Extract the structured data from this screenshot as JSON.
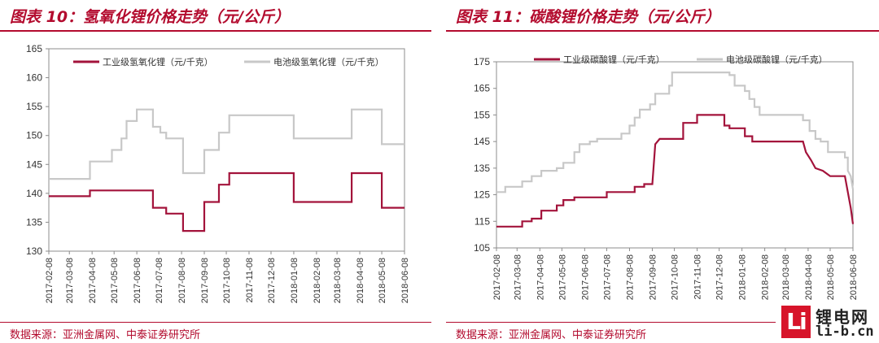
{
  "colors": {
    "accent": "#b30b2e",
    "industrial": "#a3133b",
    "battery": "#c8c8c8"
  },
  "logo": {
    "mark": "Li",
    "name_cn": "锂电网",
    "name_en": "li-b.cn"
  },
  "chart_data": [
    {
      "type": "line",
      "title": "图表 10：氢氧化锂价格走势（元/公斤）",
      "source": "数据来源：亚洲金属网、中泰证券研究所",
      "ylim": [
        130,
        165
      ],
      "yticks": [
        130,
        135,
        140,
        145,
        150,
        155,
        160,
        165
      ],
      "xlim": [
        "2017-02-08",
        "2018-06-08"
      ],
      "xticks": [
        "2017-02-08",
        "2017-03-08",
        "2017-04-08",
        "2017-05-08",
        "2017-06-08",
        "2017-07-08",
        "2017-08-08",
        "2017-09-08",
        "2017-10-08",
        "2017-11-08",
        "2017-12-08",
        "2018-01-08",
        "2018-02-08",
        "2018-03-08",
        "2018-04-08",
        "2018-05-08",
        "2018-06-08"
      ],
      "grid": false,
      "legend_position": "top",
      "series": [
        {
          "name": "工业级氢氧化锂（元/千克）",
          "color": "#a3133b",
          "points": [
            [
              "2017-02-08",
              139.5
            ],
            [
              "2017-04-05",
              139.5
            ],
            [
              "2017-04-05",
              140.5
            ],
            [
              "2017-06-30",
              140.5
            ],
            [
              "2017-06-30",
              137.5
            ],
            [
              "2017-07-18",
              137.5
            ],
            [
              "2017-07-18",
              136.5
            ],
            [
              "2017-08-10",
              136.5
            ],
            [
              "2017-08-10",
              133.5
            ],
            [
              "2017-09-08",
              133.5
            ],
            [
              "2017-09-08",
              138.5
            ],
            [
              "2017-09-28",
              138.5
            ],
            [
              "2017-09-28",
              141.5
            ],
            [
              "2017-10-12",
              141.5
            ],
            [
              "2017-10-12",
              143.5
            ],
            [
              "2018-01-08",
              143.5
            ],
            [
              "2018-01-08",
              138.5
            ],
            [
              "2018-03-28",
              138.5
            ],
            [
              "2018-03-28",
              143.5
            ],
            [
              "2018-05-08",
              143.5
            ],
            [
              "2018-05-08",
              137.5
            ],
            [
              "2018-06-08",
              137.5
            ]
          ]
        },
        {
          "name": "电池级氢氧化锂（元/千克）",
          "color": "#c8c8c8",
          "points": [
            [
              "2017-02-08",
              142.5
            ],
            [
              "2017-04-05",
              142.5
            ],
            [
              "2017-04-05",
              145.5
            ],
            [
              "2017-05-05",
              145.5
            ],
            [
              "2017-05-05",
              147.5
            ],
            [
              "2017-05-18",
              147.5
            ],
            [
              "2017-05-18",
              149.5
            ],
            [
              "2017-05-25",
              149.5
            ],
            [
              "2017-05-25",
              152.5
            ],
            [
              "2017-06-08",
              152.5
            ],
            [
              "2017-06-08",
              154.5
            ],
            [
              "2017-06-30",
              154.5
            ],
            [
              "2017-06-30",
              151.5
            ],
            [
              "2017-07-10",
              151.5
            ],
            [
              "2017-07-10",
              150.5
            ],
            [
              "2017-07-18",
              150.5
            ],
            [
              "2017-07-18",
              149.5
            ],
            [
              "2017-08-10",
              149.5
            ],
            [
              "2017-08-10",
              143.5
            ],
            [
              "2017-09-08",
              143.5
            ],
            [
              "2017-09-08",
              147.5
            ],
            [
              "2017-09-28",
              147.5
            ],
            [
              "2017-09-28",
              150.5
            ],
            [
              "2017-10-12",
              150.5
            ],
            [
              "2017-10-12",
              153.5
            ],
            [
              "2018-01-08",
              153.5
            ],
            [
              "2018-01-08",
              149.5
            ],
            [
              "2018-03-28",
              149.5
            ],
            [
              "2018-03-28",
              154.5
            ],
            [
              "2018-05-08",
              154.5
            ],
            [
              "2018-05-08",
              148.5
            ],
            [
              "2018-06-08",
              148.5
            ]
          ]
        }
      ]
    },
    {
      "type": "line",
      "title": "图表 11：碳酸锂价格走势（元/公斤）",
      "source": "数据来源：亚洲金属网、中泰证券研究所",
      "ylim": [
        105,
        175
      ],
      "yticks": [
        105,
        115,
        125,
        135,
        145,
        155,
        165,
        175
      ],
      "xlim": [
        "2017-02-08",
        "2018-06-08"
      ],
      "xticks": [
        "2017-02-08",
        "2017-03-08",
        "2017-04-08",
        "2017-05-08",
        "2017-06-08",
        "2017-07-08",
        "2017-08-08",
        "2017-09-08",
        "2017-10-08",
        "2017-11-08",
        "2017-12-08",
        "2018-01-08",
        "2018-02-08",
        "2018-03-08",
        "2018-04-08",
        "2018-05-08",
        "2018-06-08"
      ],
      "grid": false,
      "legend_position": "top",
      "series": [
        {
          "name": "工业级碳酸锂（元/千克）",
          "color": "#a3133b",
          "points": [
            [
              "2017-02-08",
              113
            ],
            [
              "2017-03-15",
              113
            ],
            [
              "2017-03-15",
              115
            ],
            [
              "2017-03-28",
              115
            ],
            [
              "2017-03-28",
              116
            ],
            [
              "2017-04-10",
              116
            ],
            [
              "2017-04-10",
              119
            ],
            [
              "2017-05-01",
              119
            ],
            [
              "2017-05-01",
              121
            ],
            [
              "2017-05-10",
              121
            ],
            [
              "2017-05-10",
              123
            ],
            [
              "2017-05-25",
              123
            ],
            [
              "2017-05-25",
              124
            ],
            [
              "2017-07-08",
              124
            ],
            [
              "2017-07-08",
              126
            ],
            [
              "2017-08-15",
              126
            ],
            [
              "2017-08-15",
              128
            ],
            [
              "2017-08-28",
              128
            ],
            [
              "2017-08-28",
              129
            ],
            [
              "2017-09-08",
              129
            ],
            [
              "2017-09-12",
              144
            ],
            [
              "2017-09-18",
              146
            ],
            [
              "2017-10-20",
              146
            ],
            [
              "2017-10-20",
              152
            ],
            [
              "2017-11-08",
              152
            ],
            [
              "2017-11-08",
              155
            ],
            [
              "2017-12-15",
              155
            ],
            [
              "2017-12-15",
              151
            ],
            [
              "2017-12-22",
              151
            ],
            [
              "2017-12-22",
              150
            ],
            [
              "2018-01-12",
              150
            ],
            [
              "2018-01-12",
              147
            ],
            [
              "2018-01-22",
              147
            ],
            [
              "2018-01-22",
              145
            ],
            [
              "2018-04-01",
              145
            ],
            [
              "2018-04-05",
              141
            ],
            [
              "2018-04-12",
              138
            ],
            [
              "2018-04-18",
              135
            ],
            [
              "2018-04-28",
              134
            ],
            [
              "2018-05-08",
              132
            ],
            [
              "2018-05-28",
              132
            ],
            [
              "2018-06-01",
              126
            ],
            [
              "2018-06-05",
              120
            ],
            [
              "2018-06-08",
              114
            ]
          ]
        },
        {
          "name": "电池级碳酸锂（元/千克）",
          "color": "#c8c8c8",
          "points": [
            [
              "2017-02-08",
              126
            ],
            [
              "2017-02-20",
              126
            ],
            [
              "2017-02-20",
              128
            ],
            [
              "2017-03-15",
              128
            ],
            [
              "2017-03-15",
              130
            ],
            [
              "2017-03-28",
              130
            ],
            [
              "2017-03-28",
              132
            ],
            [
              "2017-04-10",
              132
            ],
            [
              "2017-04-10",
              134
            ],
            [
              "2017-05-01",
              134
            ],
            [
              "2017-05-01",
              135
            ],
            [
              "2017-05-10",
              135
            ],
            [
              "2017-05-10",
              137
            ],
            [
              "2017-05-25",
              137
            ],
            [
              "2017-05-25",
              141
            ],
            [
              "2017-06-01",
              141
            ],
            [
              "2017-06-01",
              144
            ],
            [
              "2017-06-15",
              144
            ],
            [
              "2017-06-15",
              145
            ],
            [
              "2017-06-25",
              145
            ],
            [
              "2017-06-25",
              146
            ],
            [
              "2017-07-28",
              146
            ],
            [
              "2017-07-28",
              148
            ],
            [
              "2017-08-08",
              148
            ],
            [
              "2017-08-08",
              151
            ],
            [
              "2017-08-15",
              151
            ],
            [
              "2017-08-15",
              154
            ],
            [
              "2017-08-22",
              154
            ],
            [
              "2017-08-22",
              157
            ],
            [
              "2017-09-05",
              157
            ],
            [
              "2017-09-05",
              159
            ],
            [
              "2017-09-12",
              159
            ],
            [
              "2017-09-12",
              163
            ],
            [
              "2017-10-01",
              163
            ],
            [
              "2017-10-01",
              166
            ],
            [
              "2017-10-05",
              166
            ],
            [
              "2017-10-05",
              171
            ],
            [
              "2017-12-22",
              171
            ],
            [
              "2017-12-22",
              170
            ],
            [
              "2017-12-29",
              170
            ],
            [
              "2017-12-29",
              166
            ],
            [
              "2018-01-12",
              166
            ],
            [
              "2018-01-12",
              164
            ],
            [
              "2018-01-18",
              164
            ],
            [
              "2018-01-18",
              161
            ],
            [
              "2018-01-25",
              161
            ],
            [
              "2018-01-25",
              158
            ],
            [
              "2018-02-01",
              158
            ],
            [
              "2018-02-01",
              155
            ],
            [
              "2018-04-01",
              155
            ],
            [
              "2018-04-01",
              153
            ],
            [
              "2018-04-10",
              153
            ],
            [
              "2018-04-10",
              149
            ],
            [
              "2018-04-18",
              149
            ],
            [
              "2018-04-18",
              146
            ],
            [
              "2018-04-25",
              146
            ],
            [
              "2018-04-25",
              145
            ],
            [
              "2018-05-05",
              145
            ],
            [
              "2018-05-05",
              141
            ],
            [
              "2018-05-28",
              141
            ],
            [
              "2018-05-28",
              139
            ],
            [
              "2018-06-01",
              139
            ],
            [
              "2018-06-01",
              134
            ],
            [
              "2018-06-05",
              132
            ],
            [
              "2018-06-08",
              127
            ]
          ]
        }
      ]
    }
  ]
}
